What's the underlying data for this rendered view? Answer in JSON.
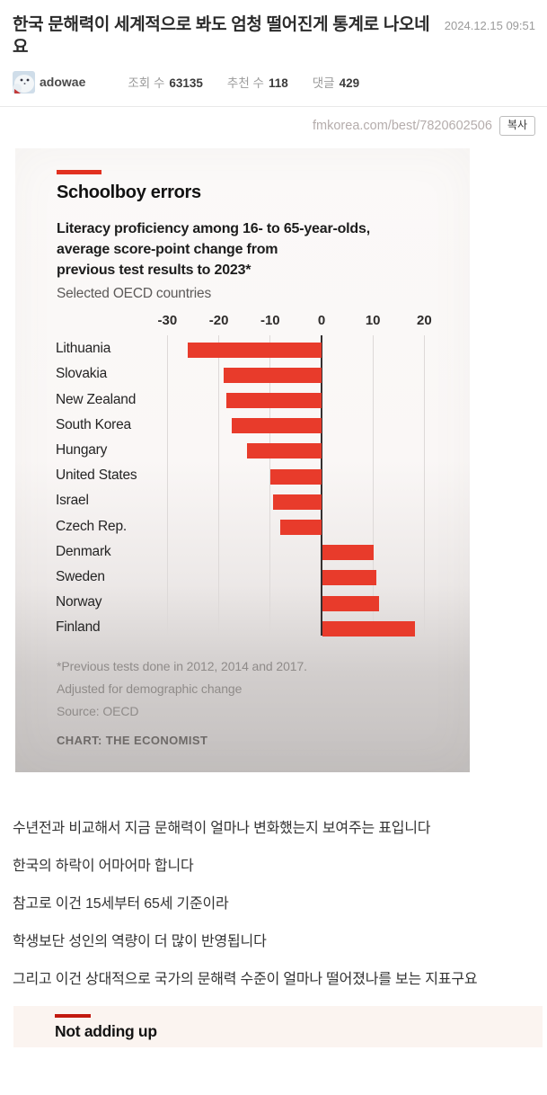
{
  "post": {
    "title": "한국 문해력이 세계적으로 봐도 엄청 떨어진게 통계로 나오네요",
    "date": "2024.12.15 09:51",
    "author": "adowae",
    "stats": [
      {
        "label": "조회 수",
        "value": "63135"
      },
      {
        "label": "추천 수",
        "value": "118"
      },
      {
        "label": "댓글",
        "value": "429"
      }
    ]
  },
  "share": {
    "url": "fmkorea.com/best/7820602506",
    "copy_label": "복사"
  },
  "chart_data": {
    "type": "bar",
    "orientation": "horizontal",
    "title": "Schoolboy errors",
    "subtitle": "Literacy proficiency among 16- to 65-year-olds, average score-point change from previous test results to 2023*",
    "subtitle_lines": [
      "Literacy proficiency among 16- to 65-year-olds,",
      "average score-point change from",
      "previous test results to 2023*"
    ],
    "subnote": "Selected OECD countries",
    "categories": [
      "Lithuania",
      "Slovakia",
      "New Zealand",
      "South Korea",
      "Hungary",
      "United States",
      "Israel",
      "Czech Rep.",
      "Denmark",
      "Sweden",
      "Norway",
      "Finland"
    ],
    "values": [
      -26,
      -19,
      -18.5,
      -17.5,
      -14.5,
      -10,
      -9.5,
      -8,
      10,
      10.5,
      11,
      18
    ],
    "xticks": [
      -30,
      -20,
      -10,
      0,
      10,
      20
    ],
    "xlim": [
      -33,
      22
    ],
    "grid": true,
    "legend": false,
    "bar_color": "#e83b2b",
    "accent_color": "#e23120",
    "footnotes": [
      "*Previous tests done in 2012, 2014 and 2017.",
      "Adjusted for demographic change",
      "Source: OECD"
    ],
    "credit": "CHART: THE ECONOMIST"
  },
  "body": {
    "paragraphs": [
      "수년전과 비교해서 지금 문해력이 얼마나 변화했는지 보여주는 표입니다",
      "한국의 하락이 어마어마 합니다",
      "참고로 이건 15세부터 65세 기준이라",
      "학생보단 성인의 역량이 더 많이 반영됩니다",
      "그리고 이건 상대적으로 국가의 문해력 수준이 얼마나 떨어졌나를 보는 지표구요"
    ]
  },
  "next_chart": {
    "title": "Not adding up",
    "accent_color": "#c2190f"
  }
}
